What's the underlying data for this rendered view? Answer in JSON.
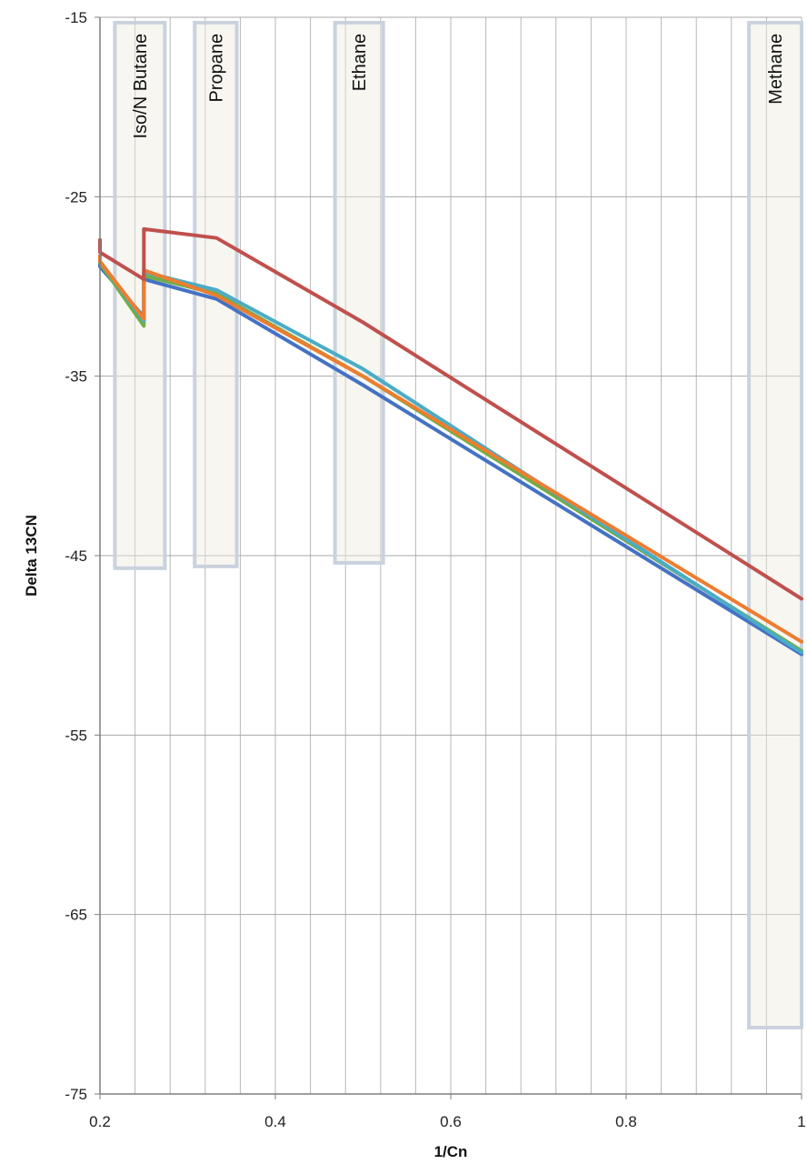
{
  "chart_data": {
    "type": "line",
    "xlabel": "1/Cn",
    "ylabel": "Delta 13CN",
    "xlim": [
      0.2,
      1
    ],
    "ylim": [
      -75,
      -15
    ],
    "x_ticks": [
      "0.2",
      "0.4",
      "0.6",
      "0.8",
      "1"
    ],
    "y_ticks": [
      "-15",
      "-25",
      "-35",
      "-45",
      "-55",
      "-65",
      "-75"
    ],
    "grid": {
      "vertical_minor": true,
      "horizontal_major": true
    },
    "bands": [
      {
        "label": "Iso/N Butane",
        "x0": 0.217,
        "x1": 0.274,
        "y_top": -15.3,
        "y_bottom": -45.7
      },
      {
        "label": "Propane",
        "x0": 0.308,
        "x1": 0.356,
        "y_top": -15.3,
        "y_bottom": -45.6
      },
      {
        "label": "Ethane",
        "x0": 0.468,
        "x1": 0.523,
        "y_top": -15.3,
        "y_bottom": -45.4
      },
      {
        "label": "Methane",
        "x0": 0.94,
        "x1": 1.0,
        "y_top": -15.3,
        "y_bottom": -71.3
      }
    ],
    "series": [
      {
        "color": "#4472c4",
        "x": [
          0.2,
          0.2,
          0.25,
          0.25,
          0.333,
          0.5,
          1.0
        ],
        "y": [
          -28.5,
          -28.9,
          -31.7,
          -29.6,
          -30.7,
          -35.5,
          -50.5
        ]
      },
      {
        "color": "#70ad47",
        "x": [
          0.2,
          0.2,
          0.25,
          0.25,
          0.333,
          0.5,
          1.0
        ],
        "y": [
          -28.4,
          -28.7,
          -32.2,
          -29.4,
          -30.4,
          -35.0,
          -50.3
        ]
      },
      {
        "color": "#4bacc6",
        "x": [
          0.2,
          0.2,
          0.25,
          0.25,
          0.333,
          0.5,
          1.0
        ],
        "y": [
          -28.3,
          -28.6,
          -31.9,
          -29.2,
          -30.2,
          -34.6,
          -50.4
        ]
      },
      {
        "color": "#ed7d31",
        "x": [
          0.2,
          0.2,
          0.25,
          0.25,
          0.333,
          0.5,
          1.0
        ],
        "y": [
          -28.3,
          -28.6,
          -31.8,
          -29.1,
          -30.5,
          -35.0,
          -49.8
        ]
      },
      {
        "color": "#c0504d",
        "x": [
          0.2,
          0.2,
          0.25,
          0.25,
          0.333,
          0.5,
          1.0
        ],
        "y": [
          -27.4,
          -28.1,
          -29.6,
          -26.8,
          -27.3,
          -32.0,
          -47.4
        ]
      }
    ]
  }
}
